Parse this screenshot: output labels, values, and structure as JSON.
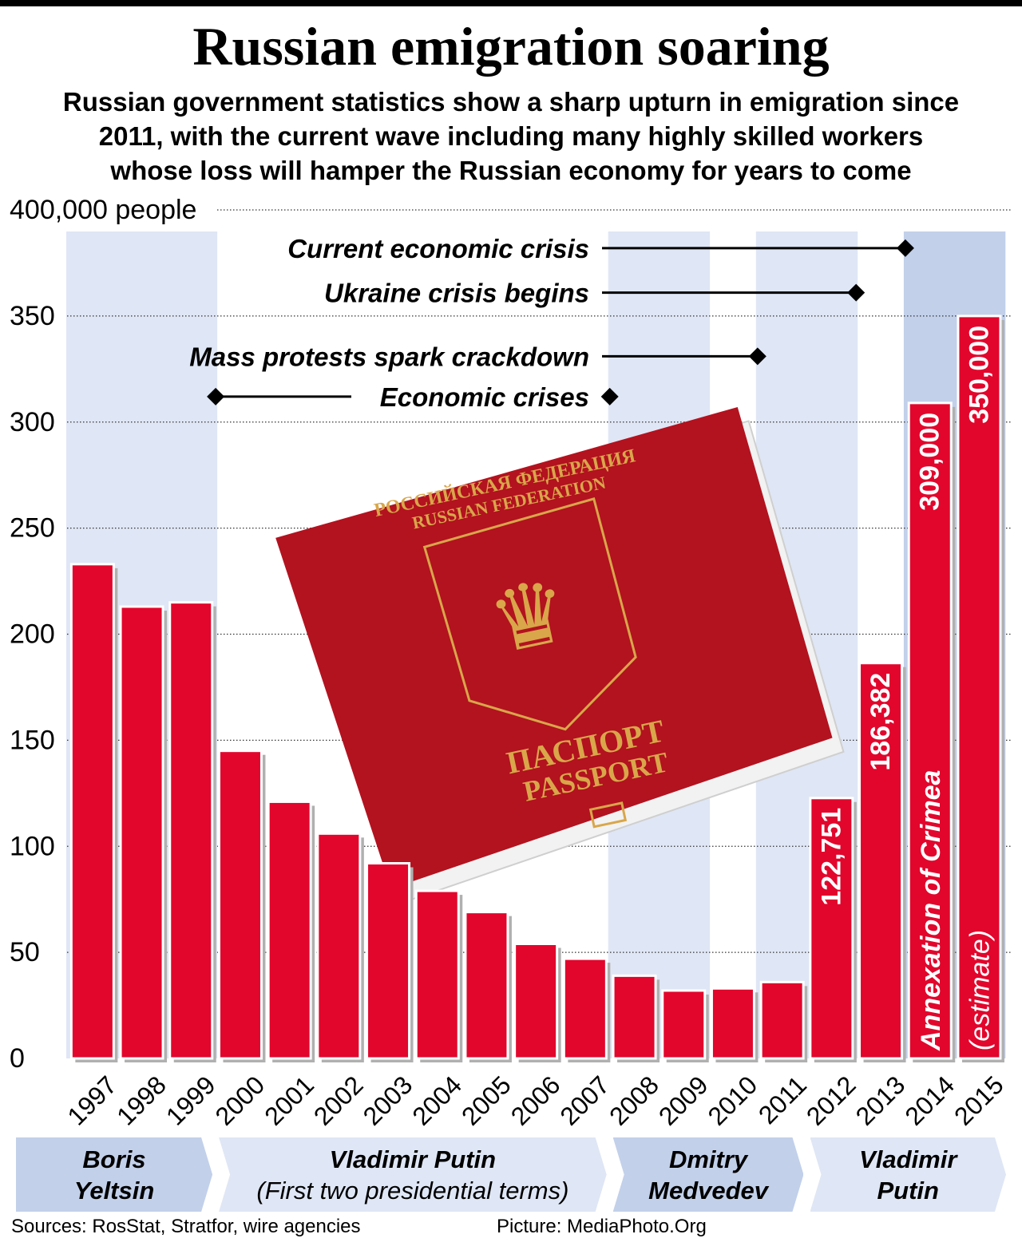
{
  "header": {
    "title": "Russian emigration soaring",
    "subtitle_lines": [
      "Russian government statistics show a sharp upturn in emigration since",
      "2011, with the current wave including many highly skilled workers",
      "whose loss will hamper the Russian economy for years to come"
    ]
  },
  "chart_data": {
    "type": "bar",
    "ylabel": "400,000 people",
    "ylim": [
      0,
      400000
    ],
    "yticks": [
      {
        "value": 0,
        "label": "0"
      },
      {
        "value": 50000,
        "label": "50"
      },
      {
        "value": 100000,
        "label": "100"
      },
      {
        "value": 150000,
        "label": "150"
      },
      {
        "value": 200000,
        "label": "200"
      },
      {
        "value": 250000,
        "label": "250"
      },
      {
        "value": 300000,
        "label": "300"
      },
      {
        "value": 350000,
        "label": "350"
      },
      {
        "value": 400000,
        "label": "400,000 people"
      }
    ],
    "grid": true,
    "categories": [
      "1997",
      "1998",
      "1999",
      "2000",
      "2001",
      "2002",
      "2003",
      "2004",
      "2005",
      "2006",
      "2007",
      "2008",
      "2009",
      "2010",
      "2011",
      "2012",
      "2013",
      "2014",
      "2015"
    ],
    "values": [
      233000,
      213000,
      215000,
      145000,
      121000,
      106000,
      92000,
      79000,
      69000,
      54000,
      47000,
      39000,
      32000,
      33000,
      36000,
      122751,
      186382,
      309000,
      350000
    ],
    "data_labels": [
      {
        "category": "2012",
        "label": "122,751"
      },
      {
        "category": "2013",
        "label": "186,382"
      },
      {
        "category": "2014",
        "label": "309,000"
      },
      {
        "category": "2015",
        "label": "350,000"
      }
    ],
    "bar_annotations": [
      {
        "category": "2014",
        "label": "Annexation of Crimea"
      },
      {
        "category": "2015",
        "label": "(estimate)"
      }
    ],
    "bar_color": "#e2062c",
    "shaded_periods": [
      {
        "from": "1997",
        "to": "1999",
        "color": "#dfe6f5"
      },
      {
        "from": "2008",
        "to": "2009",
        "color": "#dfe6f5"
      },
      {
        "from": "2011",
        "to": "2012",
        "color": "#dfe6f5"
      },
      {
        "from": "2014",
        "to": "2015",
        "color": "#c2d0ea"
      }
    ],
    "events": [
      {
        "label": "Current economic crisis",
        "markers": [
          "2014"
        ],
        "level": 382000
      },
      {
        "label": "Ukraine crisis begins",
        "markers": [
          "2013"
        ],
        "level": 361000
      },
      {
        "label": "Mass protests spark crackdown",
        "markers": [
          "2011"
        ],
        "level": 331000
      },
      {
        "label": "Economic crises",
        "markers": [
          "2000",
          "2008"
        ],
        "level": 312000
      }
    ],
    "leaders": [
      {
        "name": "Boris\nYeltsin",
        "from": "1997",
        "to": "1999",
        "color": "#c2d0ea"
      },
      {
        "name": "Vladimir Putin\n(First two presidential terms)",
        "from": "2000",
        "to": "2007",
        "color": "#dfe6f5"
      },
      {
        "name": "Dmitry\nMedvedev",
        "from": "2008",
        "to": "2011",
        "color": "#c2d0ea"
      },
      {
        "name": "Vladimir\nPutin",
        "from": "2012",
        "to": "2015",
        "color": "#dfe6f5"
      }
    ]
  },
  "footer": {
    "sources": "Sources: RosStat, Stratfor, wire agencies",
    "picture": "Picture: MediaPhoto.Org"
  },
  "photo": {
    "cover_lines": [
      "РОССИЙСКАЯ ФЕДЕРАЦИЯ",
      "RUSSIAN FEDERATION",
      "ПАСПОРТ",
      "PASSPORT"
    ],
    "cover_color": "#b3121f",
    "text_color": "#d9a64a"
  }
}
